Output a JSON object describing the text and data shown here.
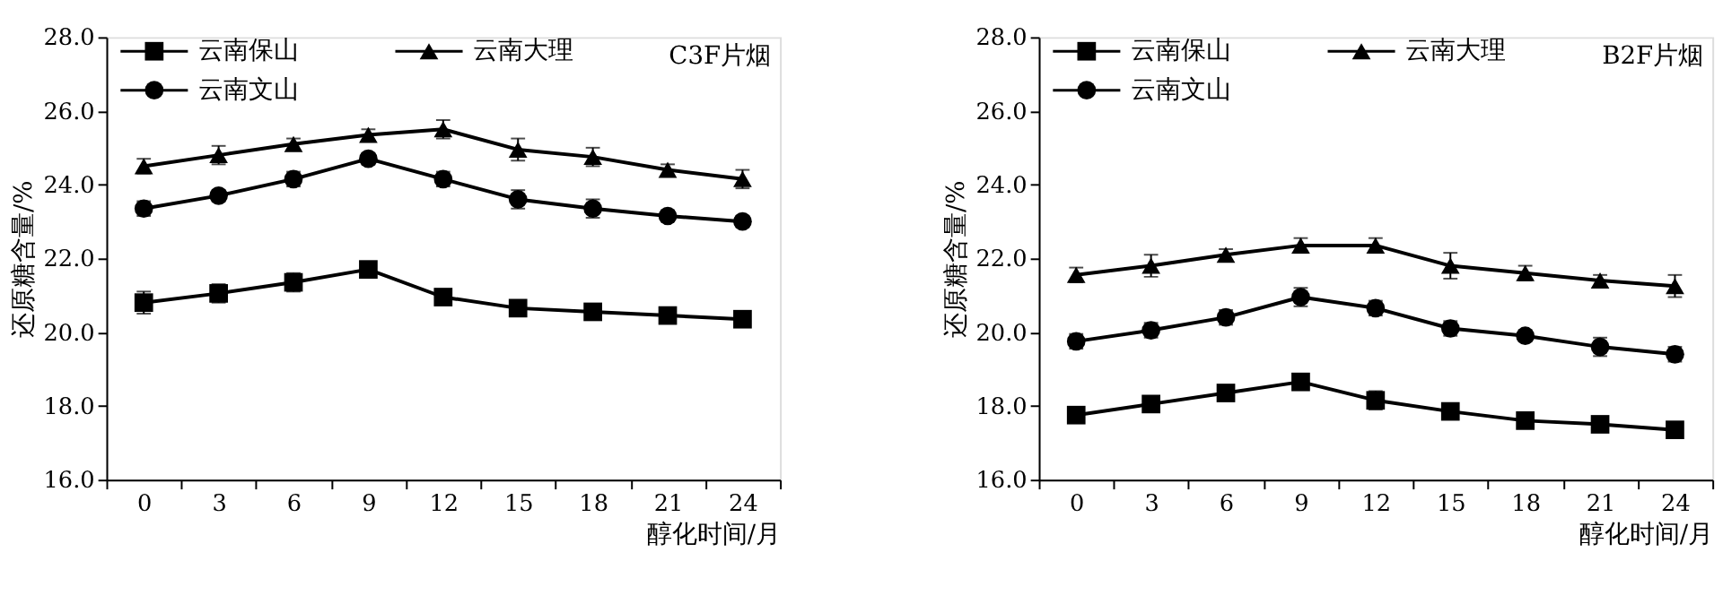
{
  "chart_data": [
    {
      "type": "line",
      "xlabel": "醇化时间/月",
      "ylabel": "还原糖含量/%",
      "annotations": [
        "C3F片烟"
      ],
      "categories": [
        "0",
        "3",
        "6",
        "9",
        "12",
        "15",
        "18",
        "21",
        "24"
      ],
      "ylim": [
        16,
        28
      ],
      "yticks": [
        {
          "value": 16,
          "label": "16.0"
        },
        {
          "value": 18,
          "label": "18.0"
        },
        {
          "value": 20,
          "label": "20.0"
        },
        {
          "value": 22,
          "label": "22.0"
        },
        {
          "value": 24,
          "label": "24.0"
        },
        {
          "value": 26,
          "label": "26.0"
        },
        {
          "value": 28,
          "label": "28.0"
        }
      ],
      "grid": false,
      "legend": "top left",
      "series": [
        {
          "name": "云南保山",
          "color": "#000000",
          "marker": "square",
          "values": [
            20.8,
            21.05,
            21.35,
            21.7,
            20.95,
            20.65,
            20.55,
            20.45,
            20.35
          ],
          "errors": [
            0.3,
            0.25,
            0.25,
            0.1,
            0.2,
            0.1,
            0.1,
            0.1,
            0.1
          ]
        },
        {
          "name": "云南大理",
          "color": "#000000",
          "marker": "triangle",
          "values": [
            24.5,
            24.8,
            25.1,
            25.35,
            25.5,
            24.95,
            24.75,
            24.4,
            24.15
          ],
          "errors": [
            0.2,
            0.25,
            0.15,
            0.15,
            0.25,
            0.3,
            0.25,
            0.15,
            0.25
          ]
        },
        {
          "name": "云南文山",
          "color": "#000000",
          "marker": "circle",
          "values": [
            23.35,
            23.7,
            24.15,
            24.7,
            24.15,
            23.6,
            23.35,
            23.15,
            23.0
          ],
          "errors": [
            0.2,
            0.15,
            0.2,
            0.15,
            0.2,
            0.25,
            0.25,
            0.15,
            0.15
          ]
        }
      ]
    },
    {
      "type": "line",
      "xlabel": "醇化时间/月",
      "ylabel": "还原糖含量/%",
      "annotations": [
        "B2F片烟"
      ],
      "categories": [
        "0",
        "3",
        "6",
        "9",
        "12",
        "15",
        "18",
        "21",
        "24"
      ],
      "ylim": [
        16,
        28
      ],
      "yticks": [
        {
          "value": 16,
          "label": "16.0"
        },
        {
          "value": 18,
          "label": "18.0"
        },
        {
          "value": 20,
          "label": "20.0"
        },
        {
          "value": 22,
          "label": "22.0"
        },
        {
          "value": 24,
          "label": "24.0"
        },
        {
          "value": 26,
          "label": "26.0"
        },
        {
          "value": 28,
          "label": "28.0"
        }
      ],
      "grid": false,
      "legend": "top left",
      "series": [
        {
          "name": "云南保山",
          "color": "#000000",
          "marker": "square",
          "values": [
            17.75,
            18.05,
            18.35,
            18.65,
            18.15,
            17.85,
            17.6,
            17.5,
            17.35
          ],
          "errors": [
            0.2,
            0.15,
            0.15,
            0.2,
            0.25,
            0.1,
            0.1,
            0.15,
            0.2
          ]
        },
        {
          "name": "云南大理",
          "color": "#000000",
          "marker": "triangle",
          "values": [
            21.55,
            21.8,
            22.1,
            22.35,
            22.35,
            21.8,
            21.6,
            21.4,
            21.25
          ],
          "errors": [
            0.2,
            0.3,
            0.15,
            0.2,
            0.2,
            0.35,
            0.2,
            0.15,
            0.3
          ]
        },
        {
          "name": "云南文山",
          "color": "#000000",
          "marker": "circle",
          "values": [
            19.75,
            20.05,
            20.4,
            20.95,
            20.65,
            20.1,
            19.9,
            19.6,
            19.4
          ],
          "errors": [
            0.2,
            0.2,
            0.2,
            0.25,
            0.2,
            0.2,
            0.15,
            0.25,
            0.2
          ]
        }
      ]
    }
  ]
}
